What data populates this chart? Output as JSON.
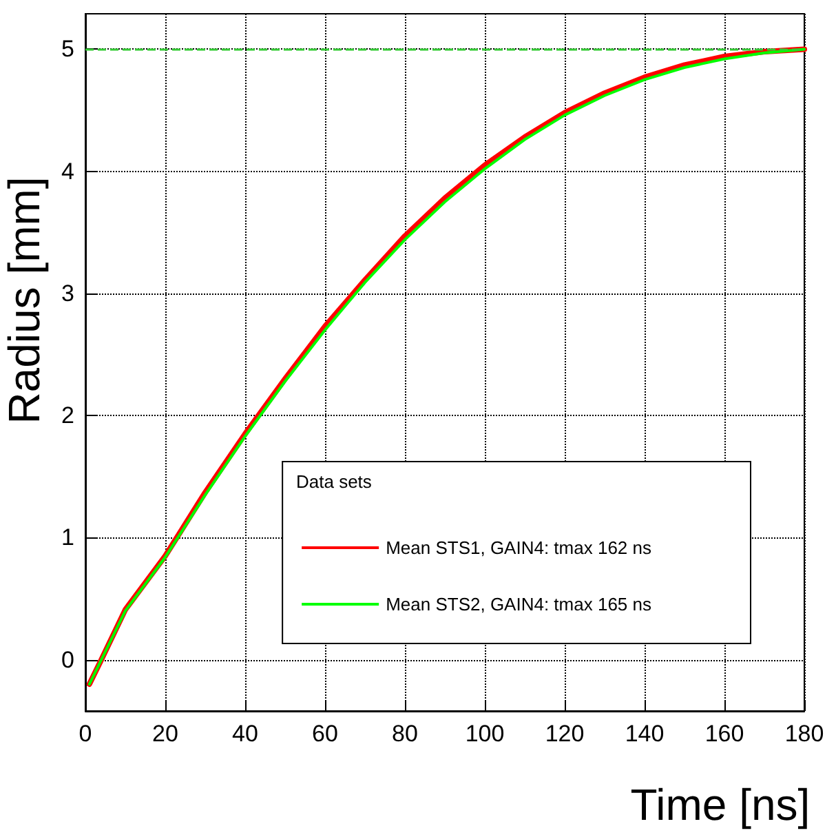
{
  "chart_data": {
    "type": "line",
    "xlabel": "Time [ns]",
    "ylabel": "Radius [mm]",
    "legend_title": "Data sets",
    "legend": "bottom right",
    "grid": true,
    "line_style": "solid",
    "marker": "none",
    "xlim": [
      0,
      180
    ],
    "xticks": [
      0,
      20,
      40,
      60,
      80,
      100,
      120,
      140,
      160,
      180
    ],
    "ylim": [
      -0.42,
      5.29
    ],
    "yticks": [
      0,
      1,
      2,
      3,
      4,
      5
    ],
    "x": [
      1,
      4,
      10,
      20,
      30,
      40,
      50,
      60,
      70,
      80,
      90,
      100,
      110,
      120,
      130,
      140,
      150,
      160,
      170,
      180
    ],
    "series": [
      {
        "name": "Mean STS1, GAIN4: tmax 162 ns",
        "color": "#ff0000",
        "values": [
          -0.2,
          0,
          0.41,
          0.85,
          1.37,
          1.85,
          2.3,
          2.73,
          3.11,
          3.47,
          3.78,
          4.05,
          4.28,
          4.48,
          4.64,
          4.77,
          4.87,
          4.94,
          4.98,
          5.0
        ]
      },
      {
        "name": "Mean STS2, GAIN4: tmax 165 ns",
        "color": "#00ff00",
        "values": [
          -0.2,
          0,
          0.4,
          0.84,
          1.35,
          1.83,
          2.28,
          2.7,
          3.09,
          3.44,
          3.75,
          4.02,
          4.26,
          4.46,
          4.62,
          4.75,
          4.85,
          4.92,
          4.97,
          5.0
        ]
      }
    ],
    "ref_lines": [
      {
        "axis": "y",
        "value": 5,
        "color": "#33cc33",
        "line_style": "dashed"
      }
    ]
  }
}
